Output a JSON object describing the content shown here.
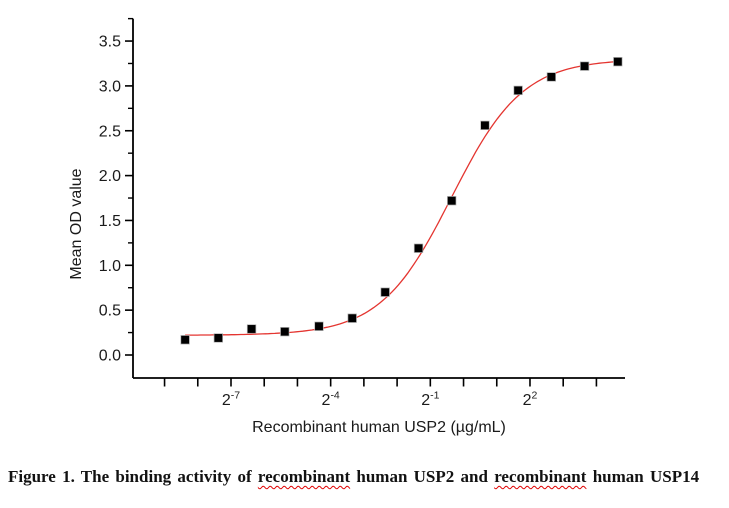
{
  "page": {
    "background": "#ffffff"
  },
  "figure_caption": {
    "parts": [
      {
        "text": "Figure 1. The binding activity of ",
        "misspelled": false
      },
      {
        "text": "recombinant",
        "misspelled": true
      },
      {
        "text": " human USP2 and ",
        "misspelled": false
      },
      {
        "text": "recombinant",
        "misspelled": true
      },
      {
        "text": " human USP14",
        "misspelled": false
      }
    ]
  },
  "chart_data": {
    "type": "scatter",
    "title": "",
    "xlabel": "Recombinant human USP2 (µg/mL)",
    "ylabel": "Mean OD value",
    "x_scale": "log2",
    "x_unit": "µg/mL",
    "series": [
      {
        "name": "Mean OD value",
        "x": [
          0.003,
          0.006,
          0.012,
          0.024,
          0.049,
          0.098,
          0.195,
          0.391,
          0.781,
          1.563,
          3.125,
          6.25,
          12.5,
          25
        ],
        "y": [
          0.17,
          0.19,
          0.29,
          0.26,
          0.32,
          0.41,
          0.7,
          1.19,
          1.72,
          2.56,
          2.95,
          3.1,
          3.22,
          3.27
        ],
        "marker": "filled-square",
        "marker_color": "#000000",
        "marker_size": 8.6
      }
    ],
    "fit_curve": {
      "model": "4PL",
      "bottom": 0.22,
      "top": 3.3,
      "ec50": 0.78,
      "hill": 1.35,
      "color": "#e43530"
    },
    "x_axis": {
      "tick_exponents": [
        -9,
        -8,
        -7,
        -6,
        -5,
        -4,
        -3,
        -2,
        -1,
        0,
        1,
        2,
        3,
        4
      ],
      "labeled_ticks": [
        {
          "base": "2",
          "exp": "-7",
          "value": -7
        },
        {
          "base": "2",
          "exp": "-4",
          "value": -4
        },
        {
          "base": "2",
          "exp": "-1",
          "value": -1
        },
        {
          "base": "2",
          "exp": "2",
          "value": 2
        }
      ]
    },
    "y_axis": {
      "major_ticks": [
        {
          "label": "0.0",
          "value": 0.0
        },
        {
          "label": "0.5",
          "value": 0.5
        },
        {
          "label": "1.0",
          "value": 1.0
        },
        {
          "label": "1.5",
          "value": 1.5
        },
        {
          "label": "2.0",
          "value": 2.0
        },
        {
          "label": "2.5",
          "value": 2.5
        },
        {
          "label": "3.0",
          "value": 3.0
        },
        {
          "label": "3.5",
          "value": 3.5
        }
      ],
      "minor_tick_values": [
        0.25,
        0.75,
        1.25,
        1.75,
        2.25,
        2.75,
        3.25,
        3.75
      ],
      "range": [
        -0.26,
        3.75
      ]
    },
    "axis_color": "#000000",
    "grid": "off",
    "legend": "none",
    "background": "#ffffff"
  }
}
